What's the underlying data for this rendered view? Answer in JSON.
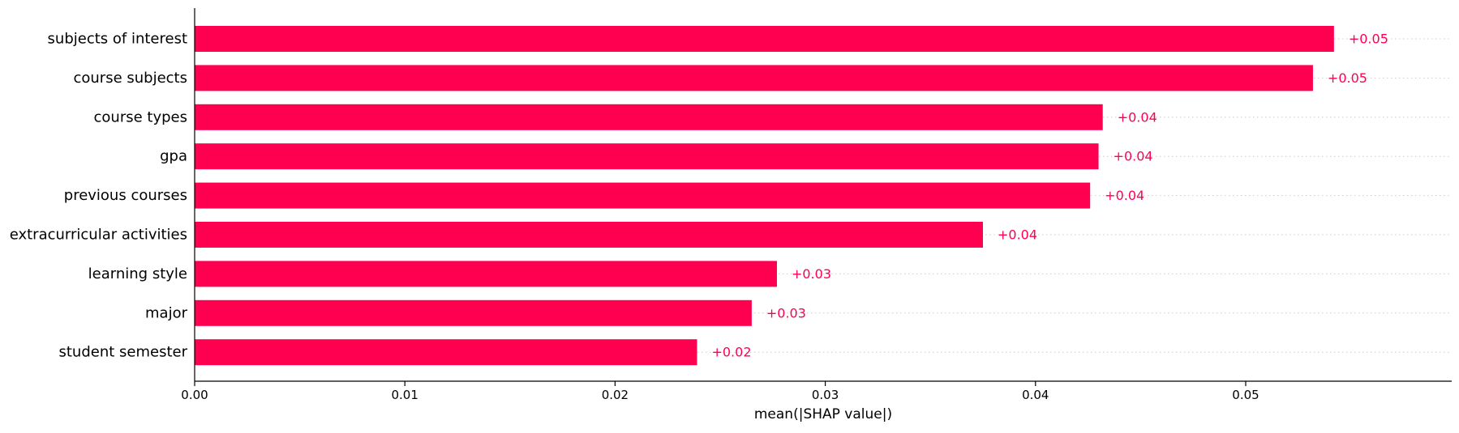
{
  "chart_data": {
    "type": "bar",
    "orientation": "horizontal",
    "categories": [
      "subjects of interest",
      "course subjects",
      "course types",
      "gpa",
      "previous courses",
      "extracurricular activities",
      "learning style",
      "major",
      "student semester"
    ],
    "values": [
      0.0542,
      0.0532,
      0.0432,
      0.043,
      0.0426,
      0.0375,
      0.0277,
      0.0265,
      0.0239
    ],
    "data_labels": [
      "+0.05",
      "+0.05",
      "+0.04",
      "+0.04",
      "+0.04",
      "+0.04",
      "+0.03",
      "+0.03",
      "+0.02"
    ],
    "title": "",
    "xlabel": "mean(|SHAP value|)",
    "ylabel": "",
    "xlim": [
      0,
      0.0598
    ],
    "xticks": [
      0.0,
      0.01,
      0.02,
      0.03,
      0.04,
      0.05
    ],
    "xtick_labels": [
      "0.00",
      "0.01",
      "0.02",
      "0.03",
      "0.04",
      "0.05"
    ],
    "grid": "dotted row guides",
    "legend": "none",
    "colors": {
      "bar": "#ff0051",
      "value_label": "#ff0051",
      "axis": "#000000",
      "guide": "#cccccc"
    }
  }
}
